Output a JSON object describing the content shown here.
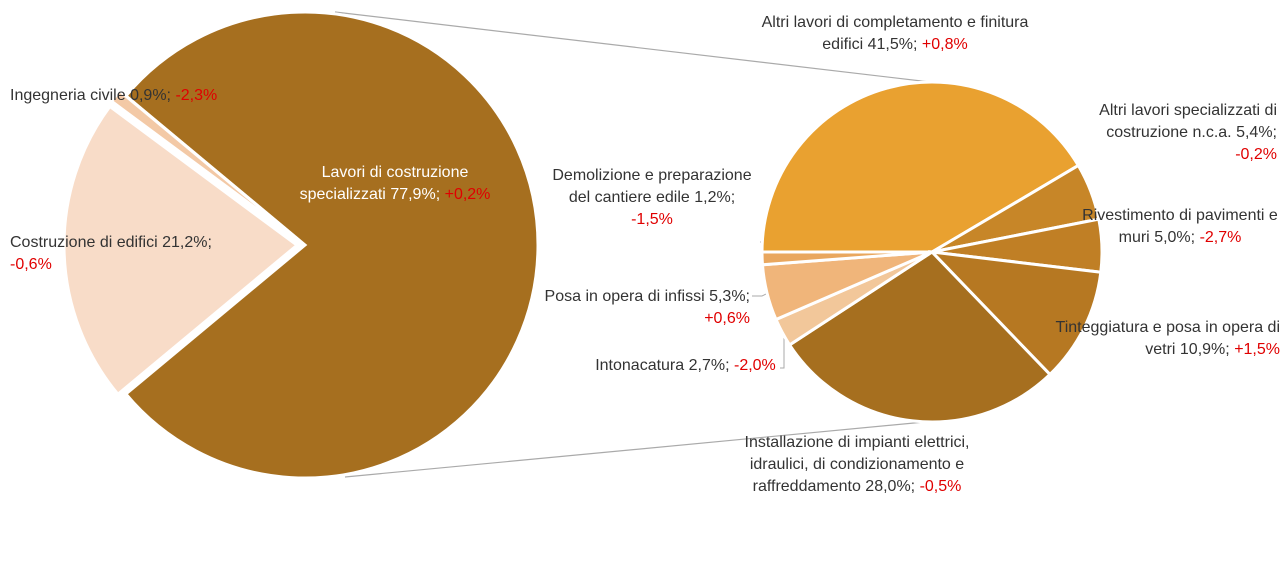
{
  "chart_data": [
    {
      "type": "pie",
      "categories": [
        "Lavori di costruzione specializzati",
        "Costruzione di edifici",
        "Ingegneria civile"
      ],
      "values": [
        77.9,
        21.2,
        0.9
      ],
      "value_labels": [
        "77,9%",
        "21,2%",
        "0,9%"
      ],
      "change_labels": [
        "+0,2%",
        "-0,6%",
        "-2,3%"
      ],
      "label_separator": ";",
      "colors": [
        "#a66f1f",
        "#f8dcc8",
        "#f3c9a6"
      ]
    },
    {
      "type": "pie",
      "categories": [
        "Altri lavori di completamento e finitura edifici",
        "Altri lavori specializzati di costruzione n.c.a.",
        "Rivestimento di pavimenti e muri",
        "Tinteggiatura e posa in opera di vetri",
        "Installazione di impianti elettrici, idraulici, di condizionamento e raffreddamento",
        "Intonacatura",
        "Posa in opera di infissi",
        "Demolizione e preparazione del cantiere edile"
      ],
      "values": [
        41.5,
        5.4,
        5.0,
        10.9,
        28.0,
        2.7,
        5.3,
        1.2
      ],
      "value_labels": [
        "41,5%",
        "5,4%",
        "5,0%",
        "10,9%",
        "28,0%",
        "2,7%",
        "5,3%",
        "1,2%"
      ],
      "change_labels": [
        "+0,8%",
        "-0,2%",
        "-2,7%",
        "+1,5%",
        "-0,5%",
        "-2,0%",
        "+0,6%",
        "-1,5%"
      ],
      "label_separator": ";",
      "colors": [
        "#e9a130",
        "#c78628",
        "#c07f25",
        "#b67822",
        "#a66f1f",
        "#f2c79a",
        "#f0b57a",
        "#e9a75e"
      ]
    }
  ]
}
